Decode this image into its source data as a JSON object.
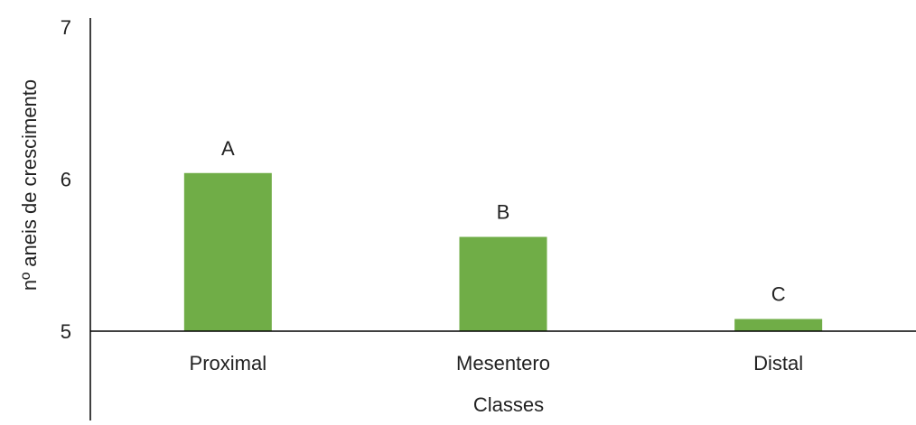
{
  "chart_data": {
    "type": "bar",
    "categories": [
      "Proximal",
      "Mesentero",
      "Distal"
    ],
    "values": [
      6.04,
      5.62,
      5.08
    ],
    "data_labels": [
      "A",
      "B",
      "C"
    ],
    "xlabel": "Classes",
    "ylabel": "nº aneis de crescimento",
    "ylim": [
      5,
      7
    ],
    "yticks": [
      "5",
      "6",
      "7"
    ],
    "bar_color": "#70AD47",
    "axis_color": "#000000",
    "grid": false,
    "legend": "none"
  }
}
